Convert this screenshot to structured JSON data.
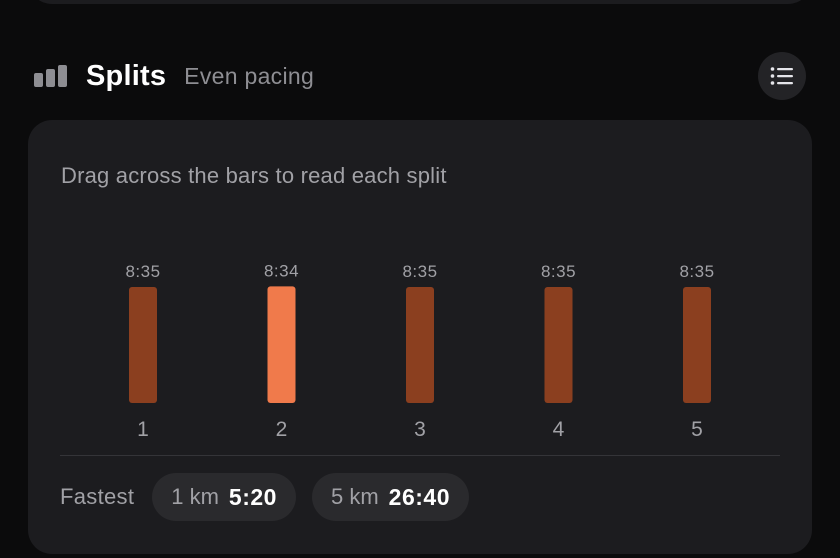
{
  "section": {
    "title": "Splits",
    "subtitle": "Even pacing",
    "icon": "bar-chart-icon",
    "list_button_icon": "list-icon"
  },
  "card": {
    "hint": "Drag across the bars to read each split"
  },
  "chart_data": {
    "type": "bar",
    "categories": [
      "1",
      "2",
      "3",
      "4",
      "5"
    ],
    "value_labels": [
      "8:35",
      "8:34",
      "8:35",
      "8:35",
      "8:35"
    ],
    "values_seconds": [
      515,
      514,
      515,
      515,
      515
    ],
    "highlight_index": 1,
    "bar_color": "#8b3f1f",
    "highlight_color": "#f07a4b",
    "xlabel": "",
    "ylabel": "",
    "grid": false,
    "legend": "none"
  },
  "fastest": {
    "label": "Fastest",
    "items": [
      {
        "distance": "1 km",
        "time": "5:20"
      },
      {
        "distance": "5 km",
        "time": "26:40"
      }
    ]
  },
  "colors": {
    "background": "#0b0b0c",
    "card": "#1c1c1f",
    "pill": "#2a2a2d",
    "muted_text": "#a1a1a6"
  }
}
